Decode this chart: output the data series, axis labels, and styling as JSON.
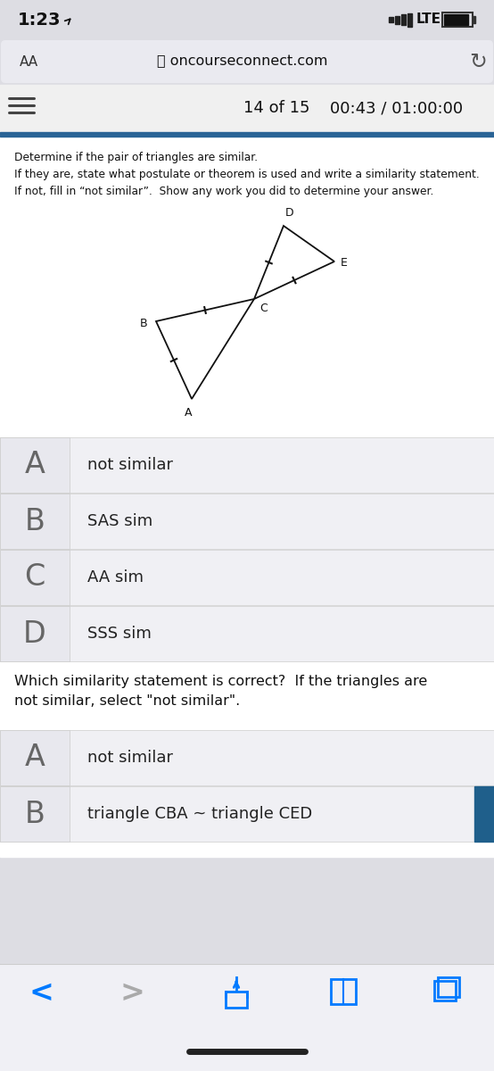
{
  "bg_top": "#dddde3",
  "url_bar_bg": "#eaeaf0",
  "content_bg": "#ffffff",
  "menu_bar_bg": "#f0f0f0",
  "blue_bar_color": "#2a6496",
  "choice_bg_letter": "#e8e8ee",
  "choice_bg_text": "#f0f0f4",
  "choice_border": "#cccccc",
  "letter_color": "#666666",
  "text_color": "#222222",
  "bottom_bar_bg": "#f0f0f5",
  "nav_blue": "#007aff",
  "nav_gray": "#aaaaaa",
  "time_text": "1:23",
  "aa_text": "AA",
  "url_text": "oncourseconnect.com",
  "progress_text": "14 of 15",
  "timer_text": "00:43 / 01:00:00",
  "question_lines": [
    "Determine if the pair of triangles are similar.",
    "If they are, state what postulate or theorem is used and write a similarity statement.",
    "If not, fill in “not similar”.  Show any work you did to determine your answer."
  ],
  "choices_q1": [
    {
      "letter": "A",
      "text": "not similar"
    },
    {
      "letter": "B",
      "text": "SAS sim"
    },
    {
      "letter": "C",
      "text": "AA sim"
    },
    {
      "letter": "D",
      "text": "SSS sim"
    }
  ],
  "q2_text": "Which similarity statement is correct?  If the triangles are\nnot similar, select \"not similar\".",
  "choices_q2": [
    {
      "letter": "A",
      "text": "not similar"
    },
    {
      "letter": "B",
      "text": "triangle CBA ~ triangle CED"
    }
  ]
}
